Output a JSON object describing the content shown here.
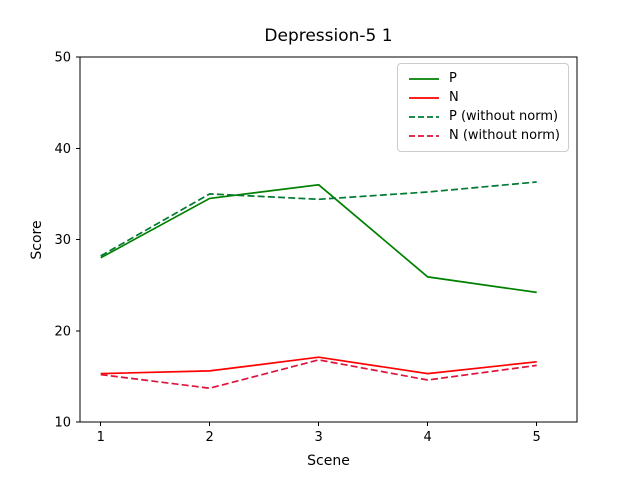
{
  "chart_data": {
    "type": "line",
    "title": "Depression-5 1",
    "xlabel": "Scene",
    "ylabel": "Score",
    "x": [
      1,
      2,
      3,
      4,
      5
    ],
    "xticks": [
      "1",
      "2",
      "3",
      "4",
      "5"
    ],
    "yticks": [
      "10",
      "20",
      "30",
      "40",
      "50"
    ],
    "ytick_values": [
      10,
      20,
      30,
      40,
      50
    ],
    "xlim": [
      0.81,
      5.37
    ],
    "ylim": [
      10,
      50
    ],
    "grid": false,
    "legend_position": "upper right",
    "axis_color": "#000000",
    "series": [
      {
        "name": "P",
        "color": "#008000",
        "style": "solid",
        "values": [
          28.0,
          34.5,
          36.0,
          25.9,
          24.2
        ]
      },
      {
        "name": "N",
        "color": "#ff0000",
        "style": "solid",
        "values": [
          15.3,
          15.6,
          17.1,
          15.3,
          16.6
        ]
      },
      {
        "name": "P (without norm)",
        "color": "#007a33",
        "style": "dashed",
        "values": [
          28.2,
          35.0,
          34.4,
          35.2,
          36.3
        ]
      },
      {
        "name": "N (without norm)",
        "color": "#dc143c",
        "style": "dashed",
        "values": [
          15.2,
          13.7,
          16.8,
          14.6,
          16.2
        ]
      }
    ]
  }
}
